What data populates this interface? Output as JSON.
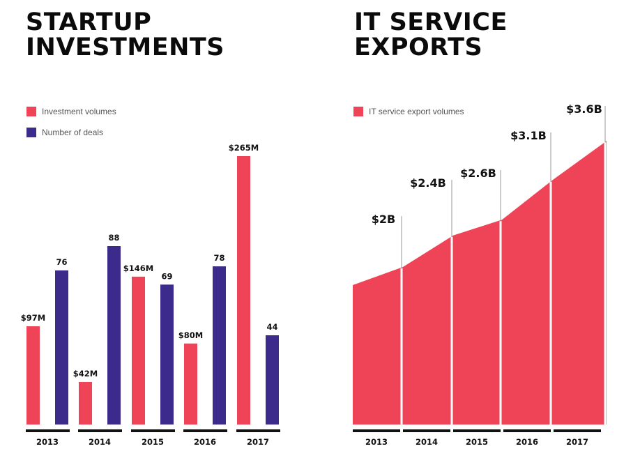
{
  "left_title": {
    "line1": "STARTUP",
    "line2": "INVESTMENTS"
  },
  "right_title": {
    "line1": "IT SERVICE",
    "line2": "EXPORTS"
  },
  "colors": {
    "red": "#ef4358",
    "purple": "#3d2b8c",
    "black": "#0b0b0b",
    "axis": "#111111"
  },
  "chart_data": [
    {
      "type": "bar",
      "categories": [
        "2013",
        "2014",
        "2015",
        "2016",
        "2017"
      ],
      "series": [
        {
          "name": "Investment volumes",
          "color": "#ef4358",
          "values": [
            97,
            42,
            146,
            80,
            265
          ],
          "labels": [
            "$97M",
            "$42M",
            "$146M",
            "$80M",
            "$265M"
          ]
        },
        {
          "name": "Number of deals",
          "color": "#3d2b8c",
          "values": [
            76,
            88,
            69,
            78,
            44
          ],
          "labels": [
            "76",
            "88",
            "69",
            "78",
            "44"
          ]
        }
      ],
      "legend": "top-left"
    },
    {
      "type": "area",
      "categories": [
        "2013",
        "2014",
        "2015",
        "2016",
        "2017"
      ],
      "series": [
        {
          "name": "IT service export volumes",
          "color": "#ef4358",
          "values": [
            2.0,
            2.4,
            2.6,
            3.1,
            3.6
          ],
          "labels": [
            "$2B",
            "$2.4B",
            "$2.6B",
            "$3.1B",
            "$3.6B"
          ]
        }
      ],
      "legend": "top-left"
    }
  ]
}
